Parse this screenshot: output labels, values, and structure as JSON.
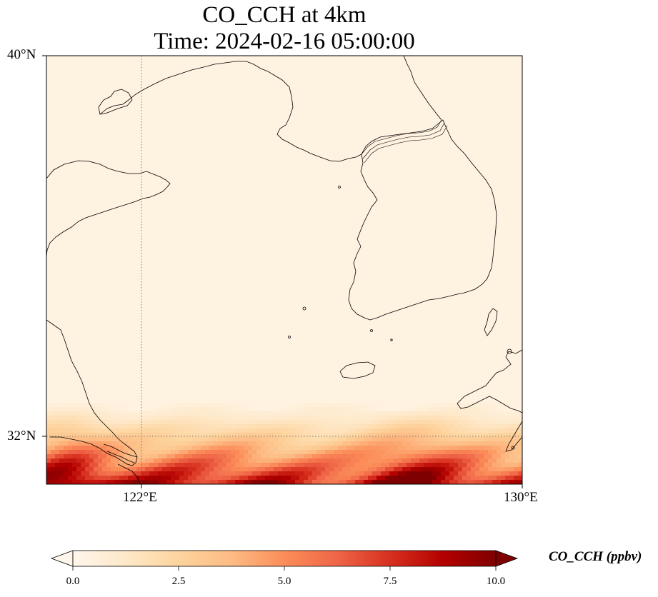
{
  "title": {
    "line1": "CO_CCH at 4km",
    "line2": "Time: 2024-02-16 05:00:00"
  },
  "axes": {
    "lat_labels": [
      "40°N",
      "32°N"
    ],
    "lon_labels": [
      "122°E",
      "130°E"
    ],
    "lat_range": [
      31,
      40
    ],
    "lon_range": [
      120,
      130
    ],
    "gridlines": "dotted"
  },
  "colorbar": {
    "label": "CO_CCH (ppbv)",
    "ticks": [
      "0.0",
      "2.5",
      "5.0",
      "7.5",
      "10.0"
    ],
    "range": [
      0,
      10
    ],
    "extend": "both",
    "colormap": "OrRd",
    "colors": [
      "#fff7ec",
      "#fee8c8",
      "#fdd49e",
      "#fdbb84",
      "#fc8d59",
      "#ef6548",
      "#d7301f",
      "#b30000",
      "#7f0000"
    ]
  },
  "field": {
    "background_value": 0.4,
    "high_band": "southern edge south of 32°N, values 3–10 ppbv, highest near 31°N 120–121°E and 127–128°E"
  }
}
